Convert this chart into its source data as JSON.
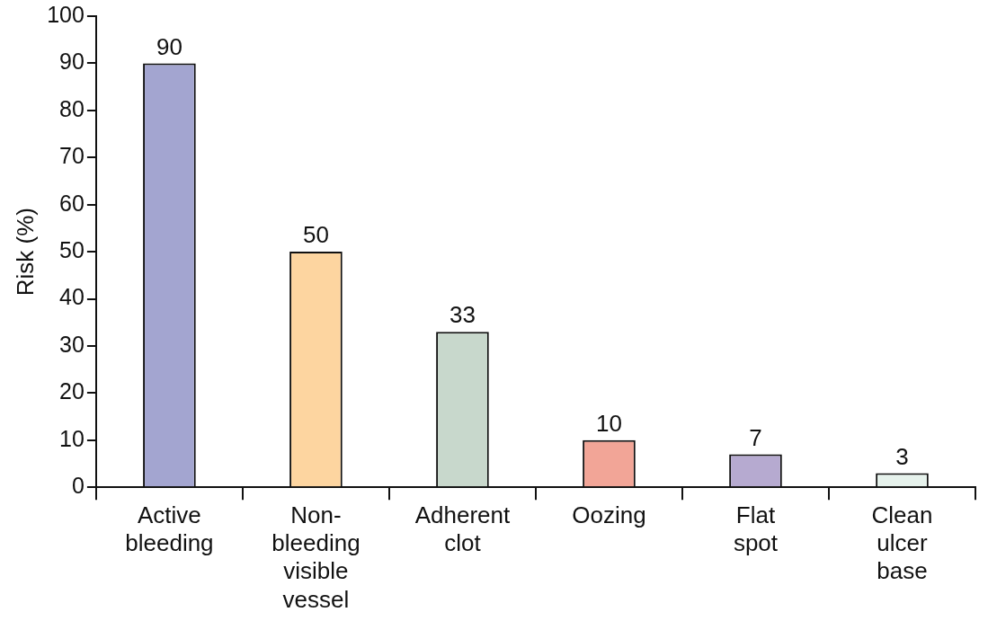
{
  "chart_data": {
    "type": "bar",
    "ylabel": "Risk (%)",
    "categories": [
      "Active bleeding",
      "Non-bleeding visible vessel",
      "Adherent clot",
      "Oozing",
      "Flat spot",
      "Clean ulcer base"
    ],
    "values": [
      90,
      50,
      33,
      10,
      7,
      3
    ],
    "colors": [
      "#a3a5d0",
      "#fdd5a0",
      "#c8d8cc",
      "#f2a597",
      "#b6aad0",
      "#e6f2ec"
    ],
    "ylim": [
      0,
      100
    ],
    "yticks": [
      0,
      10,
      20,
      30,
      40,
      50,
      60,
      70,
      80,
      90,
      100
    ],
    "data_labels": true,
    "grid": false,
    "legend": false
  }
}
